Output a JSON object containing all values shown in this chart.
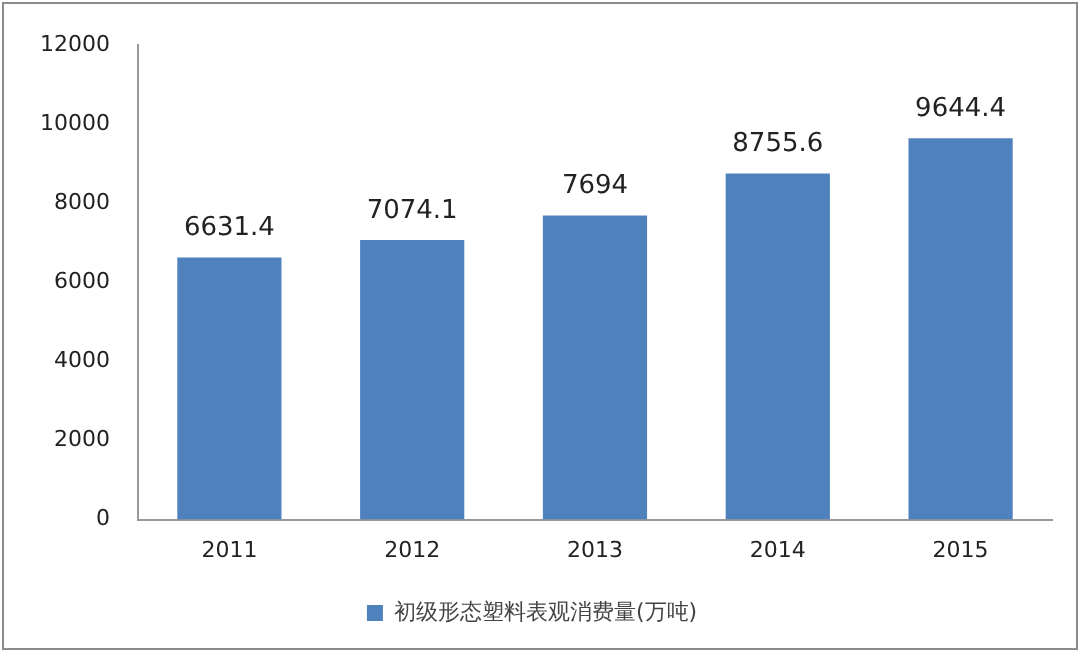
{
  "chart_data": {
    "type": "bar",
    "categories": [
      "2011",
      "2012",
      "2013",
      "2014",
      "2015"
    ],
    "series": [
      {
        "name": "初级形态塑料表观消费量(万吨)",
        "color": "#4f81bd",
        "values": [
          6631.4,
          7074.1,
          7694,
          8755.6,
          9644.4
        ]
      }
    ],
    "ylim": [
      0,
      12000
    ],
    "yticks": [
      0,
      2000,
      4000,
      6000,
      8000,
      10000,
      12000
    ],
    "grid": false,
    "legend": "bottom",
    "data_labels": true
  }
}
